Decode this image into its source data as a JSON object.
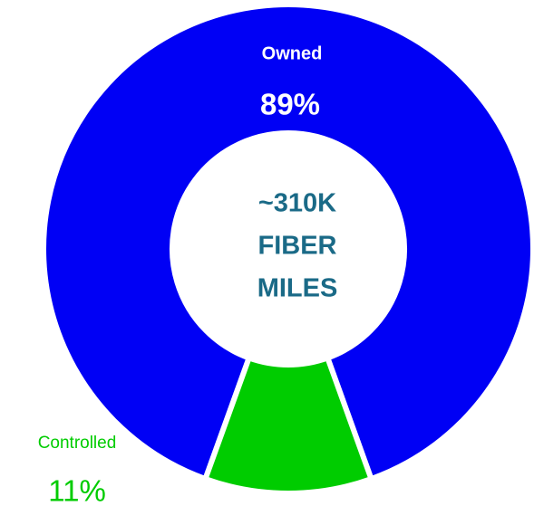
{
  "chart_data": {
    "type": "donut",
    "categories": [
      "Owned",
      "Controlled"
    ],
    "values": [
      89,
      11
    ],
    "value_labels": [
      "89%",
      "11%"
    ],
    "colors": [
      "#0000f5",
      "#00cc00"
    ],
    "center_label": [
      "~310K",
      "FIBER",
      "MILES"
    ]
  }
}
